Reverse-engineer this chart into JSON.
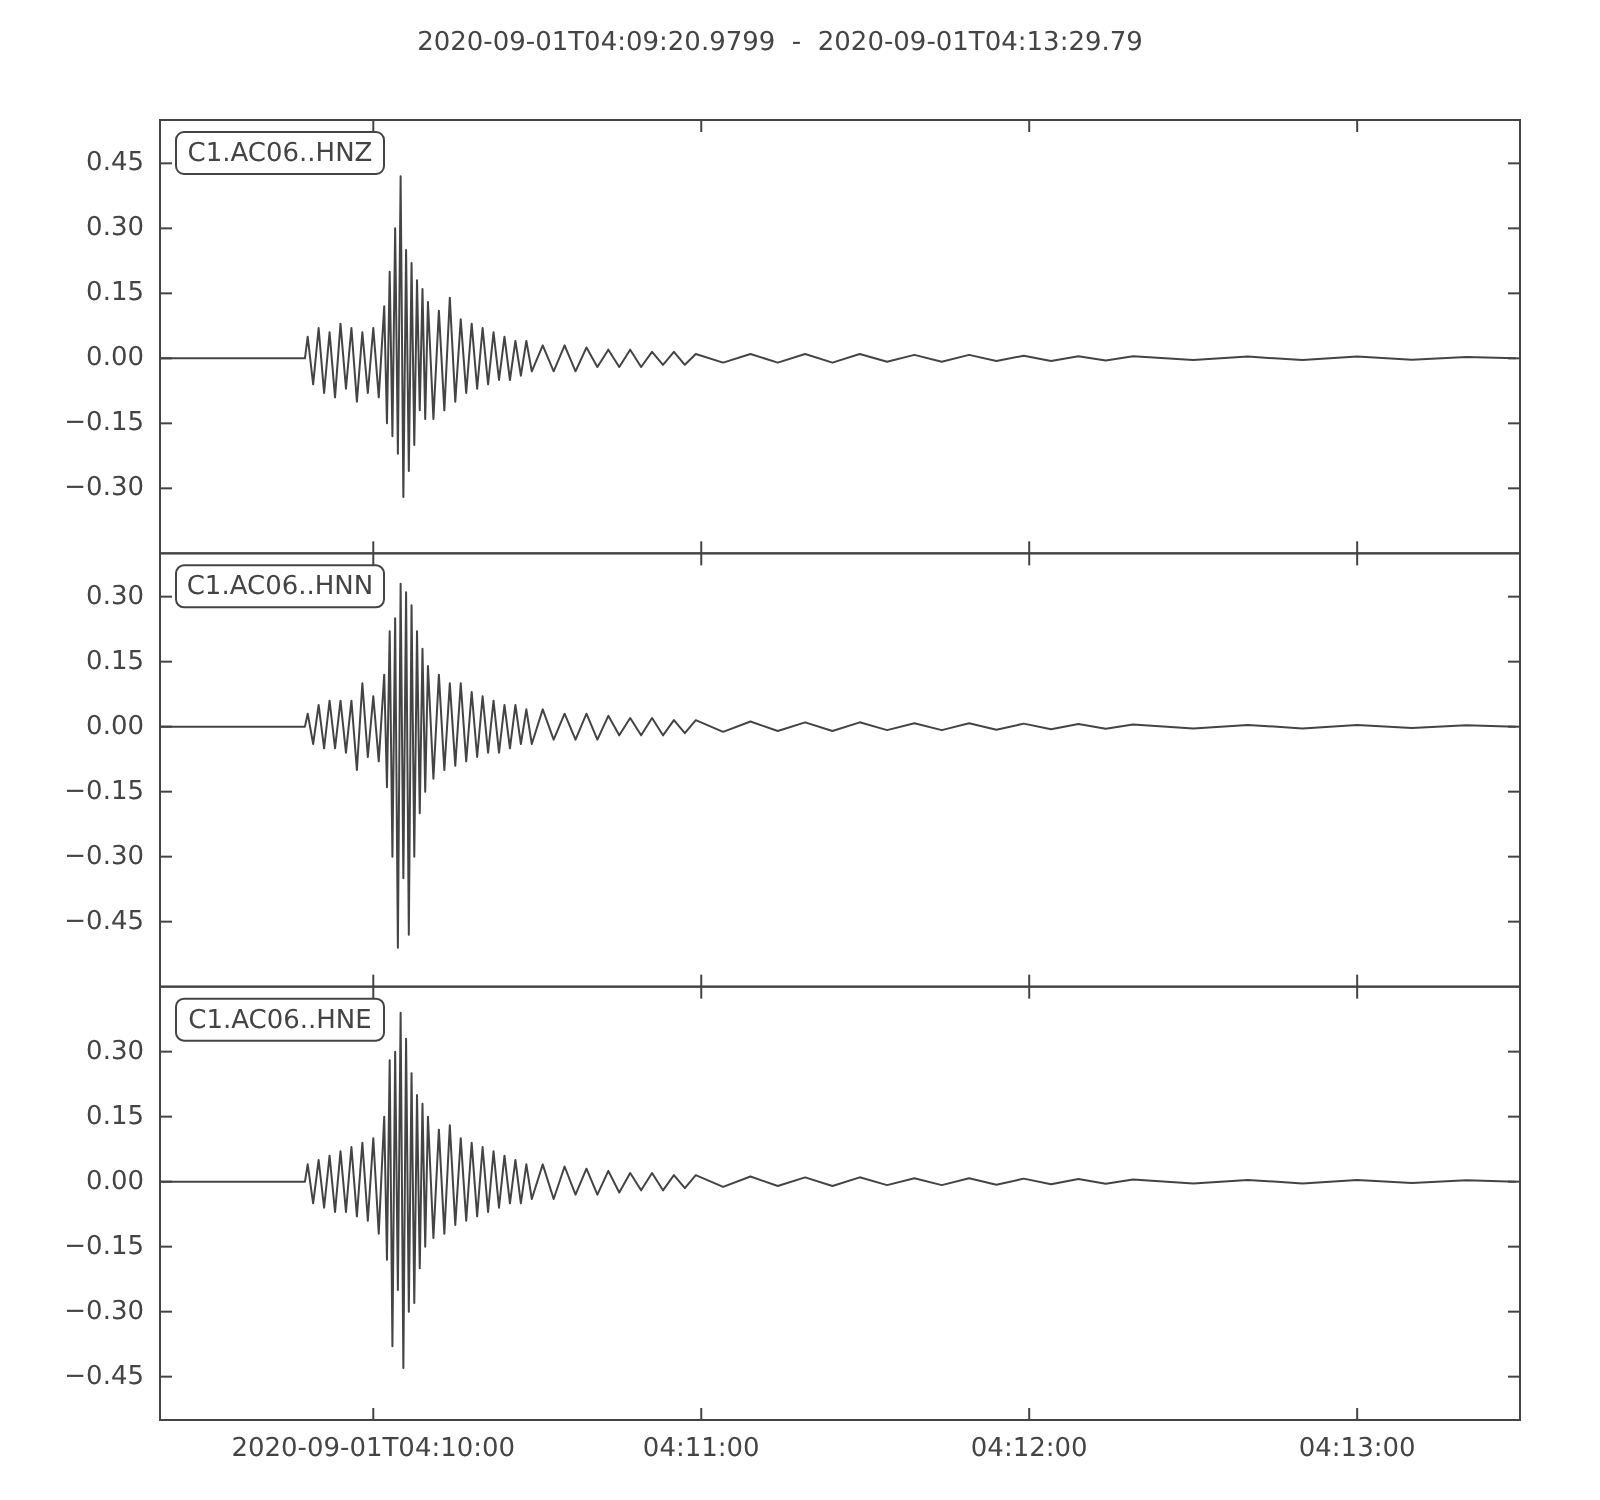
{
  "chart_data": [
    {
      "type": "line",
      "title": "2020-09-01T04:09:20.9799  -  2020-09-01T04:13:29.79",
      "legend": "top left",
      "tick_labels": "y",
      "x": [
        "2020-09-01T04:09:21",
        "2020-09-01T04:09:47.5",
        "2020-09-01T04:09:48",
        "2020-09-01T04:09:49",
        "2020-09-01T04:09:50",
        "2020-09-01T04:09:51",
        "2020-09-01T04:09:52",
        "2020-09-01T04:09:53",
        "2020-09-01T04:09:54",
        "2020-09-01T04:09:55",
        "2020-09-01T04:09:56",
        "2020-09-01T04:09:57",
        "2020-09-01T04:09:58",
        "2020-09-01T04:09:59",
        "2020-09-01T04:10:00",
        "2020-09-01T04:10:01",
        "2020-09-01T04:10:02",
        "2020-09-01T04:10:02.5",
        "2020-09-01T04:10:03",
        "2020-09-01T04:10:03.5",
        "2020-09-01T04:10:04",
        "2020-09-01T04:10:04.5",
        "2020-09-01T04:10:05",
        "2020-09-01T04:10:05.5",
        "2020-09-01T04:10:06",
        "2020-09-01T04:10:06.5",
        "2020-09-01T04:10:07",
        "2020-09-01T04:10:07.5",
        "2020-09-01T04:10:08",
        "2020-09-01T04:10:08.5",
        "2020-09-01T04:10:09",
        "2020-09-01T04:10:09.5",
        "2020-09-01T04:10:10",
        "2020-09-01T04:10:11",
        "2020-09-01T04:10:12",
        "2020-09-01T04:10:13",
        "2020-09-01T04:10:14",
        "2020-09-01T04:10:15",
        "2020-09-01T04:10:16",
        "2020-09-01T04:10:17",
        "2020-09-01T04:10:18",
        "2020-09-01T04:10:19",
        "2020-09-01T04:10:20",
        "2020-09-01T04:10:21",
        "2020-09-01T04:10:22",
        "2020-09-01T04:10:23",
        "2020-09-01T04:10:24",
        "2020-09-01T04:10:25",
        "2020-09-01T04:10:26",
        "2020-09-01T04:10:27",
        "2020-09-01T04:10:28",
        "2020-09-01T04:10:29",
        "2020-09-01T04:10:31",
        "2020-09-01T04:10:33",
        "2020-09-01T04:10:35",
        "2020-09-01T04:10:37",
        "2020-09-01T04:10:39",
        "2020-09-01T04:10:41",
        "2020-09-01T04:10:43",
        "2020-09-01T04:10:45",
        "2020-09-01T04:10:47",
        "2020-09-01T04:10:49",
        "2020-09-01T04:10:51",
        "2020-09-01T04:10:53",
        "2020-09-01T04:10:55",
        "2020-09-01T04:10:57",
        "2020-09-01T04:10:59",
        "2020-09-01T04:11:04",
        "2020-09-01T04:11:09",
        "2020-09-01T04:11:14",
        "2020-09-01T04:11:19",
        "2020-09-01T04:11:24",
        "2020-09-01T04:11:29",
        "2020-09-01T04:11:34",
        "2020-09-01T04:11:39",
        "2020-09-01T04:11:44",
        "2020-09-01T04:11:49",
        "2020-09-01T04:11:54",
        "2020-09-01T04:11:59",
        "2020-09-01T04:12:04",
        "2020-09-01T04:12:09",
        "2020-09-01T04:12:14",
        "2020-09-01T04:12:19",
        "2020-09-01T04:12:30",
        "2020-09-01T04:12:40",
        "2020-09-01T04:12:50",
        "2020-09-01T04:13:00",
        "2020-09-01T04:13:10",
        "2020-09-01T04:13:20",
        "2020-09-01T04:13:29"
      ],
      "xlim": [
        "2020-09-01T04:09:20.9799",
        "2020-09-01T04:13:29.79"
      ],
      "xticks": [
        {
          "value": "2020-09-01T04:10:00",
          "label": null
        },
        {
          "value": "2020-09-01T04:11:00",
          "label": null
        },
        {
          "value": "2020-09-01T04:12:00",
          "label": null
        },
        {
          "value": "2020-09-01T04:13:00",
          "label": null
        }
      ],
      "ylim": [
        -0.45,
        0.55
      ],
      "yticks": [
        {
          "value": 0.45,
          "label": "0.45"
        },
        {
          "value": 0.3,
          "label": "0.30"
        },
        {
          "value": 0.15,
          "label": "0.15"
        },
        {
          "value": 0,
          "label": "0.00"
        },
        {
          "value": -0.15,
          "label": "−0.15"
        },
        {
          "value": -0.3,
          "label": "−0.30"
        }
      ],
      "series": [
        {
          "name": "C1.AC06..HNZ",
          "color": "#444444",
          "values": [
            0,
            0,
            0.05,
            -0.06,
            0.07,
            -0.08,
            0.06,
            -0.09,
            0.08,
            -0.07,
            0.07,
            -0.1,
            0.06,
            -0.08,
            0.07,
            -0.09,
            0.12,
            -0.15,
            0.2,
            -0.18,
            0.3,
            -0.22,
            0.42,
            -0.32,
            0.25,
            -0.26,
            0.22,
            -0.2,
            0.18,
            -0.12,
            0.16,
            -0.14,
            0.13,
            -0.14,
            0.11,
            -0.12,
            0.14,
            -0.1,
            0.09,
            -0.08,
            0.08,
            -0.07,
            0.07,
            -0.06,
            0.06,
            -0.05,
            0.05,
            -0.05,
            0.04,
            -0.04,
            0.04,
            -0.03,
            0.03,
            -0.03,
            0.03,
            -0.03,
            0.025,
            -0.02,
            0.02,
            -0.02,
            0.02,
            -0.02,
            0.015,
            -0.015,
            0.015,
            -0.015,
            0.01,
            -0.01,
            0.01,
            -0.01,
            0.01,
            -0.01,
            0.01,
            -0.008,
            0.008,
            -0.008,
            0.008,
            -0.006,
            0.006,
            -0.006,
            0.005,
            -0.005,
            0.005,
            -0.004,
            0.004,
            -0.004,
            0.004,
            -0.003,
            0.003,
            0
          ]
        }
      ]
    },
    {
      "type": "line",
      "legend": "top left",
      "tick_labels": "y",
      "x": [
        "2020-09-01T04:09:21",
        "2020-09-01T04:09:47.5",
        "2020-09-01T04:09:48",
        "2020-09-01T04:09:49",
        "2020-09-01T04:09:50",
        "2020-09-01T04:09:51",
        "2020-09-01T04:09:52",
        "2020-09-01T04:09:53",
        "2020-09-01T04:09:54",
        "2020-09-01T04:09:55",
        "2020-09-01T04:09:56",
        "2020-09-01T04:09:57",
        "2020-09-01T04:09:58",
        "2020-09-01T04:09:59",
        "2020-09-01T04:10:00",
        "2020-09-01T04:10:01",
        "2020-09-01T04:10:02",
        "2020-09-01T04:10:02.5",
        "2020-09-01T04:10:03",
        "2020-09-01T04:10:03.5",
        "2020-09-01T04:10:04",
        "2020-09-01T04:10:04.5",
        "2020-09-01T04:10:05",
        "2020-09-01T04:10:05.5",
        "2020-09-01T04:10:06",
        "2020-09-01T04:10:06.5",
        "2020-09-01T04:10:07",
        "2020-09-01T04:10:07.5",
        "2020-09-01T04:10:08",
        "2020-09-01T04:10:08.5",
        "2020-09-01T04:10:09",
        "2020-09-01T04:10:09.5",
        "2020-09-01T04:10:10",
        "2020-09-01T04:10:11",
        "2020-09-01T04:10:12",
        "2020-09-01T04:10:13",
        "2020-09-01T04:10:14",
        "2020-09-01T04:10:15",
        "2020-09-01T04:10:16",
        "2020-09-01T04:10:17",
        "2020-09-01T04:10:18",
        "2020-09-01T04:10:19",
        "2020-09-01T04:10:20",
        "2020-09-01T04:10:21",
        "2020-09-01T04:10:22",
        "2020-09-01T04:10:23",
        "2020-09-01T04:10:24",
        "2020-09-01T04:10:25",
        "2020-09-01T04:10:26",
        "2020-09-01T04:10:27",
        "2020-09-01T04:10:28",
        "2020-09-01T04:10:29",
        "2020-09-01T04:10:31",
        "2020-09-01T04:10:33",
        "2020-09-01T04:10:35",
        "2020-09-01T04:10:37",
        "2020-09-01T04:10:39",
        "2020-09-01T04:10:41",
        "2020-09-01T04:10:43",
        "2020-09-01T04:10:45",
        "2020-09-01T04:10:47",
        "2020-09-01T04:10:49",
        "2020-09-01T04:10:51",
        "2020-09-01T04:10:53",
        "2020-09-01T04:10:55",
        "2020-09-01T04:10:57",
        "2020-09-01T04:10:59",
        "2020-09-01T04:11:04",
        "2020-09-01T04:11:09",
        "2020-09-01T04:11:14",
        "2020-09-01T04:11:19",
        "2020-09-01T04:11:24",
        "2020-09-01T04:11:29",
        "2020-09-01T04:11:34",
        "2020-09-01T04:11:39",
        "2020-09-01T04:11:44",
        "2020-09-01T04:11:49",
        "2020-09-01T04:11:54",
        "2020-09-01T04:11:59",
        "2020-09-01T04:12:04",
        "2020-09-01T04:12:09",
        "2020-09-01T04:12:14",
        "2020-09-01T04:12:19",
        "2020-09-01T04:12:30",
        "2020-09-01T04:12:40",
        "2020-09-01T04:12:50",
        "2020-09-01T04:13:00",
        "2020-09-01T04:13:10",
        "2020-09-01T04:13:20",
        "2020-09-01T04:13:29"
      ],
      "xlim": [
        "2020-09-01T04:09:20.9799",
        "2020-09-01T04:13:29.79"
      ],
      "xticks": [
        {
          "value": "2020-09-01T04:10:00",
          "label": null
        },
        {
          "value": "2020-09-01T04:11:00",
          "label": null
        },
        {
          "value": "2020-09-01T04:12:00",
          "label": null
        },
        {
          "value": "2020-09-01T04:13:00",
          "label": null
        }
      ],
      "ylim": [
        -0.6,
        0.4
      ],
      "yticks": [
        {
          "value": 0.3,
          "label": "0.30"
        },
        {
          "value": 0.15,
          "label": "0.15"
        },
        {
          "value": 0,
          "label": "0.00"
        },
        {
          "value": -0.15,
          "label": "−0.15"
        },
        {
          "value": -0.3,
          "label": "−0.30"
        },
        {
          "value": -0.45,
          "label": "−0.45"
        }
      ],
      "series": [
        {
          "name": "C1.AC06..HNN",
          "color": "#444444",
          "values": [
            0,
            0,
            0.03,
            -0.04,
            0.05,
            -0.05,
            0.06,
            -0.05,
            0.06,
            -0.06,
            0.06,
            -0.1,
            0.1,
            -0.07,
            0.07,
            -0.08,
            0.12,
            -0.14,
            0.22,
            -0.3,
            0.25,
            -0.51,
            0.33,
            -0.35,
            0.31,
            -0.48,
            0.28,
            -0.3,
            0.22,
            -0.2,
            0.18,
            -0.15,
            0.14,
            -0.12,
            0.12,
            -0.1,
            0.1,
            -0.09,
            0.1,
            -0.08,
            0.08,
            -0.07,
            0.07,
            -0.06,
            0.06,
            -0.06,
            0.05,
            -0.05,
            0.05,
            -0.04,
            0.04,
            -0.04,
            0.04,
            -0.03,
            0.03,
            -0.03,
            0.03,
            -0.03,
            0.025,
            -0.02,
            0.02,
            -0.02,
            0.02,
            -0.02,
            0.015,
            -0.015,
            0.015,
            -0.012,
            0.012,
            -0.01,
            0.01,
            -0.01,
            0.01,
            -0.008,
            0.008,
            -0.008,
            0.008,
            -0.007,
            0.007,
            -0.006,
            0.006,
            -0.005,
            0.005,
            -0.004,
            0.004,
            -0.004,
            0.004,
            -0.003,
            0.003,
            0
          ]
        }
      ]
    },
    {
      "type": "line",
      "legend": "top left",
      "tick_labels": "xy",
      "x": [
        "2020-09-01T04:09:21",
        "2020-09-01T04:09:47.5",
        "2020-09-01T04:09:48",
        "2020-09-01T04:09:49",
        "2020-09-01T04:09:50",
        "2020-09-01T04:09:51",
        "2020-09-01T04:09:52",
        "2020-09-01T04:09:53",
        "2020-09-01T04:09:54",
        "2020-09-01T04:09:55",
        "2020-09-01T04:09:56",
        "2020-09-01T04:09:57",
        "2020-09-01T04:09:58",
        "2020-09-01T04:09:59",
        "2020-09-01T04:10:00",
        "2020-09-01T04:10:01",
        "2020-09-01T04:10:02",
        "2020-09-01T04:10:02.5",
        "2020-09-01T04:10:03",
        "2020-09-01T04:10:03.5",
        "2020-09-01T04:10:04",
        "2020-09-01T04:10:04.5",
        "2020-09-01T04:10:05",
        "2020-09-01T04:10:05.5",
        "2020-09-01T04:10:06",
        "2020-09-01T04:10:06.5",
        "2020-09-01T04:10:07",
        "2020-09-01T04:10:07.5",
        "2020-09-01T04:10:08",
        "2020-09-01T04:10:08.5",
        "2020-09-01T04:10:09",
        "2020-09-01T04:10:09.5",
        "2020-09-01T04:10:10",
        "2020-09-01T04:10:11",
        "2020-09-01T04:10:12",
        "2020-09-01T04:10:13",
        "2020-09-01T04:10:14",
        "2020-09-01T04:10:15",
        "2020-09-01T04:10:16",
        "2020-09-01T04:10:17",
        "2020-09-01T04:10:18",
        "2020-09-01T04:10:19",
        "2020-09-01T04:10:20",
        "2020-09-01T04:10:21",
        "2020-09-01T04:10:22",
        "2020-09-01T04:10:23",
        "2020-09-01T04:10:24",
        "2020-09-01T04:10:25",
        "2020-09-01T04:10:26",
        "2020-09-01T04:10:27",
        "2020-09-01T04:10:28",
        "2020-09-01T04:10:29",
        "2020-09-01T04:10:31",
        "2020-09-01T04:10:33",
        "2020-09-01T04:10:35",
        "2020-09-01T04:10:37",
        "2020-09-01T04:10:39",
        "2020-09-01T04:10:41",
        "2020-09-01T04:10:43",
        "2020-09-01T04:10:45",
        "2020-09-01T04:10:47",
        "2020-09-01T04:10:49",
        "2020-09-01T04:10:51",
        "2020-09-01T04:10:53",
        "2020-09-01T04:10:55",
        "2020-09-01T04:10:57",
        "2020-09-01T04:10:59",
        "2020-09-01T04:11:04",
        "2020-09-01T04:11:09",
        "2020-09-01T04:11:14",
        "2020-09-01T04:11:19",
        "2020-09-01T04:11:24",
        "2020-09-01T04:11:29",
        "2020-09-01T04:11:34",
        "2020-09-01T04:11:39",
        "2020-09-01T04:11:44",
        "2020-09-01T04:11:49",
        "2020-09-01T04:11:54",
        "2020-09-01T04:11:59",
        "2020-09-01T04:12:04",
        "2020-09-01T04:12:09",
        "2020-09-01T04:12:14",
        "2020-09-01T04:12:19",
        "2020-09-01T04:12:30",
        "2020-09-01T04:12:40",
        "2020-09-01T04:12:50",
        "2020-09-01T04:13:00",
        "2020-09-01T04:13:10",
        "2020-09-01T04:13:20",
        "2020-09-01T04:13:29"
      ],
      "xlim": [
        "2020-09-01T04:09:20.9799",
        "2020-09-01T04:13:29.79"
      ],
      "xticks": [
        {
          "value": "2020-09-01T04:10:00",
          "label": "2020-09-01T04:10:00"
        },
        {
          "value": "2020-09-01T04:11:00",
          "label": "04:11:00"
        },
        {
          "value": "2020-09-01T04:12:00",
          "label": "04:12:00"
        },
        {
          "value": "2020-09-01T04:13:00",
          "label": "04:13:00"
        }
      ],
      "ylim": [
        -0.55,
        0.45
      ],
      "yticks": [
        {
          "value": 0.3,
          "label": "0.30"
        },
        {
          "value": 0.15,
          "label": "0.15"
        },
        {
          "value": 0,
          "label": "0.00"
        },
        {
          "value": -0.15,
          "label": "−0.15"
        },
        {
          "value": -0.3,
          "label": "−0.30"
        },
        {
          "value": -0.45,
          "label": "−0.45"
        }
      ],
      "series": [
        {
          "name": "C1.AC06..HNE",
          "color": "#444444",
          "values": [
            0,
            0,
            0.04,
            -0.05,
            0.05,
            -0.06,
            0.06,
            -0.07,
            0.07,
            -0.07,
            0.08,
            -0.08,
            0.09,
            -0.09,
            0.1,
            -0.12,
            0.15,
            -0.18,
            0.28,
            -0.38,
            0.3,
            -0.25,
            0.39,
            -0.43,
            0.33,
            -0.3,
            0.25,
            -0.28,
            0.2,
            -0.2,
            0.18,
            -0.15,
            0.15,
            -0.13,
            0.12,
            -0.12,
            0.13,
            -0.1,
            0.1,
            -0.09,
            0.09,
            -0.08,
            0.08,
            -0.07,
            0.07,
            -0.06,
            0.06,
            -0.05,
            0.05,
            -0.05,
            0.04,
            -0.04,
            0.04,
            -0.04,
            0.035,
            -0.03,
            0.03,
            -0.03,
            0.025,
            -0.025,
            0.02,
            -0.02,
            0.02,
            -0.02,
            0.015,
            -0.015,
            0.015,
            -0.012,
            0.012,
            -0.01,
            0.01,
            -0.01,
            0.01,
            -0.008,
            0.008,
            -0.008,
            0.008,
            -0.007,
            0.007,
            -0.006,
            0.006,
            -0.005,
            0.005,
            -0.004,
            0.004,
            -0.004,
            0.004,
            -0.003,
            0.003,
            0
          ]
        }
      ]
    }
  ]
}
